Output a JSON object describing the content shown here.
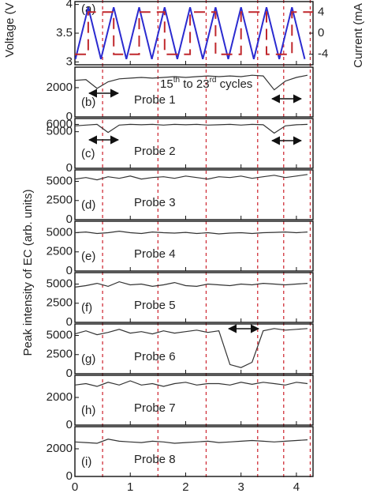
{
  "shared_ylabel": "Peak intensity of EC (arb. units)",
  "chart_data": [
    {
      "type": "line",
      "label": "(a)",
      "ylabel": "Voltage (V",
      "y2label": "Current (mA",
      "annotation_parts": [
        "15",
        "th",
        " to 23",
        "rd",
        " cycles"
      ],
      "xlim": [
        0,
        4.3
      ],
      "ylim": [
        2.95,
        4.05
      ],
      "yticks": [
        3,
        3.5,
        4
      ],
      "y2lim": [
        -6,
        6
      ],
      "y2ticks": [
        -4,
        0,
        4
      ],
      "vlines": [
        0.5,
        1.5,
        2.37,
        3.3,
        3.77,
        4.25
      ],
      "vline_color": "#d0303a",
      "series": [
        {
          "name": "Voltage",
          "color": "#2b2bd0",
          "x": [
            0.01,
            0.24,
            0.47,
            0.7,
            0.93,
            1.16,
            1.39,
            1.62,
            1.85,
            2.08,
            2.31,
            2.54,
            2.77,
            3.0,
            3.23,
            3.46,
            3.69,
            3.92,
            4.15
          ],
          "values": [
            3.05,
            3.95,
            3.05,
            3.95,
            3.05,
            3.95,
            3.05,
            3.95,
            3.05,
            3.95,
            3.05,
            3.95,
            3.05,
            3.95,
            3.05,
            3.95,
            3.05,
            3.95,
            3.05
          ]
        },
        {
          "name": "Current",
          "color": "#c0282d",
          "axis": "y2",
          "x": [
            0,
            0.24,
            0.24,
            0.7,
            0.7,
            1.16,
            1.16,
            1.62,
            1.62,
            2.08,
            2.08,
            2.54,
            2.54,
            3.0,
            3.0,
            3.46,
            3.46,
            3.92,
            3.92,
            4.3
          ],
          "values": [
            -4,
            -4,
            4,
            4,
            -4,
            -4,
            4,
            4,
            -4,
            -4,
            4,
            4,
            -4,
            -4,
            4,
            4,
            -4,
            -4,
            4,
            4
          ]
        }
      ]
    },
    {
      "type": "line",
      "label": "(b)",
      "probe": "Probe 1",
      "xlim": [
        0,
        4.3
      ],
      "ylim": [
        0,
        3400
      ],
      "yticks": [
        0,
        2000
      ],
      "color": "#333333",
      "x": [
        0,
        0.2,
        0.4,
        0.6,
        0.8,
        1,
        1.2,
        1.4,
        1.6,
        1.8,
        2,
        2.2,
        2.4,
        2.6,
        2.8,
        3,
        3.2,
        3.4,
        3.6,
        3.8,
        4,
        4.2
      ],
      "values": [
        2500,
        2550,
        1950,
        2400,
        2600,
        2650,
        2700,
        2650,
        2700,
        2750,
        2700,
        2750,
        2800,
        2750,
        2800,
        2750,
        2850,
        2800,
        1850,
        2450,
        2700,
        2850
      ]
    },
    {
      "type": "line",
      "label": "(c)",
      "probe": "Probe 2",
      "xlim": [
        0,
        4.3
      ],
      "ylim": [
        0,
        6800
      ],
      "yticks": [
        0,
        5000,
        6000
      ],
      "color": "#333333",
      "x": [
        0,
        0.2,
        0.4,
        0.6,
        0.8,
        1,
        1.2,
        1.4,
        1.6,
        1.8,
        2,
        2.2,
        2.4,
        2.6,
        2.8,
        3,
        3.2,
        3.4,
        3.6,
        3.8,
        4,
        4.2
      ],
      "values": [
        5800,
        5900,
        6000,
        4900,
        5900,
        6000,
        5950,
        6000,
        5900,
        6000,
        5950,
        6000,
        5900,
        5950,
        6000,
        5900,
        6000,
        5950,
        4800,
        5800,
        5950,
        6000
      ]
    },
    {
      "type": "line",
      "label": "(d)",
      "probe": "Probe 3",
      "xlim": [
        0,
        4.3
      ],
      "ylim": [
        0,
        6500
      ],
      "yticks": [
        0,
        2500,
        5000
      ],
      "color": "#333333",
      "x": [
        0,
        0.2,
        0.4,
        0.6,
        0.8,
        1,
        1.2,
        1.4,
        1.6,
        1.8,
        2,
        2.2,
        2.4,
        2.6,
        2.8,
        3,
        3.2,
        3.4,
        3.6,
        3.8,
        4,
        4.2
      ],
      "values": [
        5300,
        5500,
        5200,
        5600,
        5400,
        5700,
        5300,
        5500,
        5600,
        5400,
        5700,
        5500,
        5300,
        5600,
        5500,
        5700,
        5400,
        5600,
        5800,
        5500,
        5700,
        5900
      ]
    },
    {
      "type": "line",
      "label": "(e)",
      "probe": "Probe 4",
      "xlim": [
        0,
        4.3
      ],
      "ylim": [
        0,
        6500
      ],
      "yticks": [
        0,
        2500,
        5000
      ],
      "color": "#333333",
      "x": [
        0,
        0.2,
        0.4,
        0.6,
        0.8,
        1,
        1.2,
        1.4,
        1.6,
        1.8,
        2,
        2.2,
        2.4,
        2.6,
        2.8,
        3,
        3.2,
        3.4,
        3.6,
        3.8,
        4,
        4.2
      ],
      "values": [
        5000,
        5100,
        4900,
        5000,
        5200,
        5000,
        4900,
        5100,
        5000,
        4950,
        5050,
        4900,
        5000,
        4850,
        4950,
        5000,
        4900,
        5000,
        5050,
        5100,
        5000,
        5100
      ]
    },
    {
      "type": "line",
      "label": "(f)",
      "probe": "Probe 5",
      "xlim": [
        0,
        4.3
      ],
      "ylim": [
        0,
        6500
      ],
      "yticks": [
        0,
        2500,
        5000
      ],
      "color": "#333333",
      "x": [
        0,
        0.2,
        0.4,
        0.6,
        0.8,
        1,
        1.2,
        1.4,
        1.6,
        1.8,
        2,
        2.2,
        2.4,
        2.6,
        2.8,
        3,
        3.2,
        3.4,
        3.6,
        3.8,
        4,
        4.2
      ],
      "values": [
        4600,
        4800,
        5100,
        4700,
        5300,
        4900,
        5000,
        4700,
        4900,
        5200,
        4800,
        4700,
        5000,
        4900,
        4800,
        5000,
        4900,
        5100,
        5000,
        4900,
        5000,
        5100
      ]
    },
    {
      "type": "line",
      "label": "(g)",
      "probe": "Probe 6",
      "xlim": [
        0,
        4.3
      ],
      "ylim": [
        0,
        6500
      ],
      "yticks": [
        0,
        2500,
        5000
      ],
      "color": "#333333",
      "x": [
        0,
        0.2,
        0.4,
        0.6,
        0.8,
        1,
        1.2,
        1.4,
        1.6,
        1.8,
        2,
        2.2,
        2.4,
        2.6,
        2.8,
        3,
        3.2,
        3.4,
        3.6,
        3.8,
        4,
        4.2
      ],
      "values": [
        5200,
        5600,
        5100,
        5400,
        5800,
        5300,
        5500,
        5200,
        5600,
        5300,
        5500,
        5700,
        5400,
        5600,
        1200,
        800,
        1500,
        5600,
        5900,
        5700,
        5800,
        5900
      ]
    },
    {
      "type": "line",
      "label": "(h)",
      "probe": "Probe 7",
      "xlim": [
        0,
        4.3
      ],
      "ylim": [
        0,
        3600
      ],
      "yticks": [
        0,
        2000
      ],
      "color": "#333333",
      "x": [
        0,
        0.2,
        0.4,
        0.6,
        0.8,
        1,
        1.2,
        1.4,
        1.6,
        1.8,
        2,
        2.2,
        2.4,
        2.6,
        2.8,
        3,
        3.2,
        3.4,
        3.6,
        3.8,
        4,
        4.2
      ],
      "values": [
        2900,
        3000,
        2800,
        3100,
        2900,
        3200,
        2900,
        3000,
        2800,
        3000,
        3100,
        2900,
        3000,
        3000,
        2900,
        3100,
        2950,
        3100,
        3000,
        2900,
        3100,
        3000
      ]
    },
    {
      "type": "line",
      "label": "(i)",
      "probe": "Probe 8",
      "xlim": [
        0,
        4.3
      ],
      "ylim": [
        0,
        3600
      ],
      "yticks": [
        0,
        2000
      ],
      "xticks": [
        0,
        1,
        2,
        3,
        4
      ],
      "color": "#333333",
      "x": [
        0,
        0.2,
        0.4,
        0.6,
        0.8,
        1,
        1.2,
        1.4,
        1.6,
        1.8,
        2,
        2.2,
        2.4,
        2.6,
        2.8,
        3,
        3.2,
        3.4,
        3.6,
        3.8,
        4,
        4.2
      ],
      "values": [
        2500,
        2450,
        2400,
        2700,
        2550,
        2500,
        2450,
        2550,
        2500,
        2400,
        2450,
        2500,
        2550,
        2450,
        2500,
        2550,
        2600,
        2550,
        2500,
        2550,
        2600,
        2650
      ]
    }
  ]
}
